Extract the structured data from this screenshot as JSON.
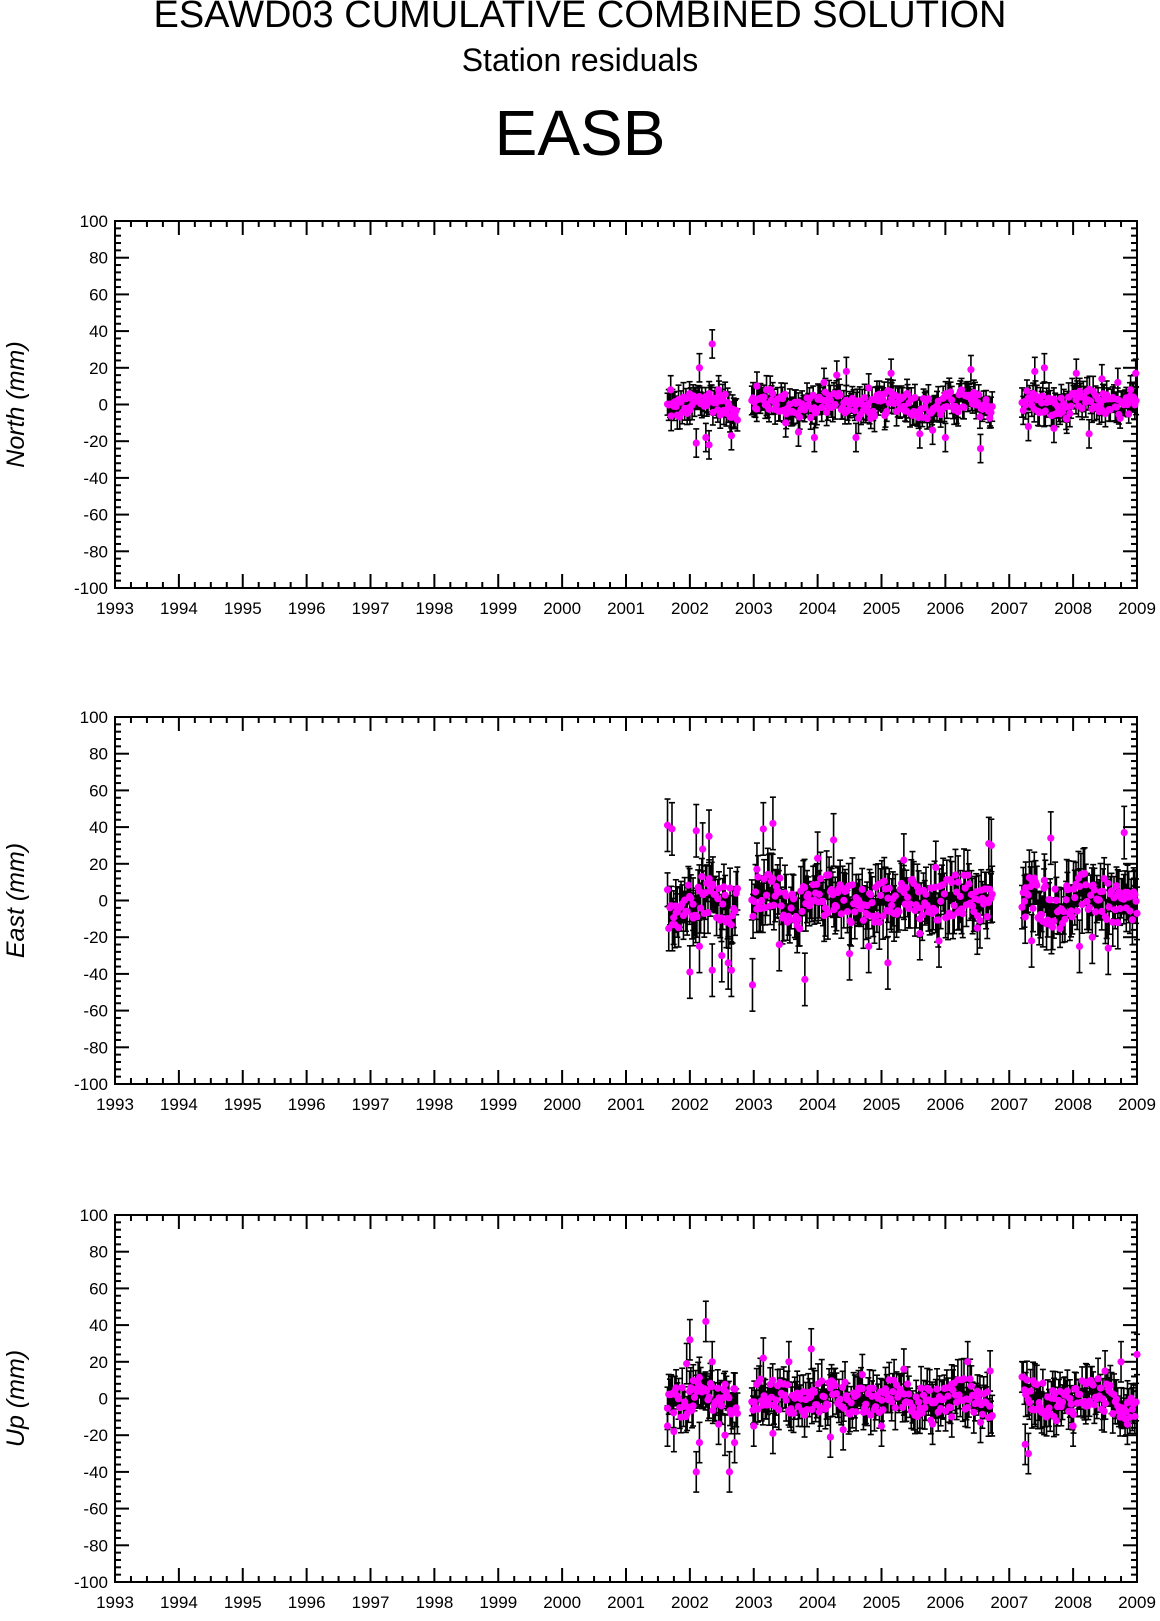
{
  "title": "ESAWD03 CUMULATIVE COMBINED SOLUTION",
  "subtitle": "Station residuals",
  "station": "EASB",
  "colors": {
    "marker": "#ff00ff",
    "errorbar": "#000000",
    "axes": "#000000"
  },
  "chart_data": [
    {
      "type": "scatter",
      "ylabel": "North (mm)",
      "xlim": [
        1993,
        2009
      ],
      "ylim": [
        -100,
        100
      ],
      "xticks": [
        1993,
        1994,
        1995,
        1996,
        1997,
        1998,
        1999,
        2000,
        2001,
        2002,
        2003,
        2004,
        2005,
        2006,
        2007,
        2008,
        2009
      ],
      "yticks": [
        100,
        80,
        60,
        40,
        20,
        0,
        -20,
        -40,
        -60,
        -80,
        -100
      ],
      "data_segments": [
        [
          2001.65,
          2002.75
        ],
        [
          2002.97,
          2006.75
        ],
        [
          2007.2,
          2009.0
        ]
      ],
      "error_half_mm": 7,
      "points": [
        [
          2001.7,
          8
        ],
        [
          2001.75,
          -1
        ],
        [
          2002.0,
          -3
        ],
        [
          2002.1,
          -21
        ],
        [
          2002.15,
          20
        ],
        [
          2002.25,
          -18
        ],
        [
          2002.3,
          -22
        ],
        [
          2002.35,
          33
        ],
        [
          2002.45,
          8
        ],
        [
          2002.6,
          -2
        ],
        [
          2002.65,
          -17
        ],
        [
          2003.05,
          10
        ],
        [
          2003.2,
          8
        ],
        [
          2003.5,
          -10
        ],
        [
          2003.7,
          -15
        ],
        [
          2003.95,
          -18
        ],
        [
          2004.1,
          12
        ],
        [
          2004.3,
          16
        ],
        [
          2004.45,
          18
        ],
        [
          2004.6,
          -18
        ],
        [
          2004.8,
          9
        ],
        [
          2005.05,
          -6
        ],
        [
          2005.15,
          17
        ],
        [
          2005.4,
          6
        ],
        [
          2005.6,
          -16
        ],
        [
          2005.8,
          -14
        ],
        [
          2006.0,
          -18
        ],
        [
          2006.2,
          -4
        ],
        [
          2006.4,
          19
        ],
        [
          2006.55,
          -24
        ],
        [
          2006.7,
          -4
        ],
        [
          2007.3,
          -12
        ],
        [
          2007.4,
          18
        ],
        [
          2007.55,
          20
        ],
        [
          2007.7,
          -13
        ],
        [
          2007.9,
          -8
        ],
        [
          2008.05,
          17
        ],
        [
          2008.25,
          -16
        ],
        [
          2008.45,
          14
        ],
        [
          2008.7,
          12
        ],
        [
          2008.9,
          8
        ],
        [
          2008.98,
          17
        ]
      ]
    },
    {
      "type": "scatter",
      "ylabel": "East (mm)",
      "xlim": [
        1993,
        2009
      ],
      "ylim": [
        -100,
        100
      ],
      "xticks": [
        1993,
        1994,
        1995,
        1996,
        1997,
        1998,
        1999,
        2000,
        2001,
        2002,
        2003,
        2004,
        2005,
        2006,
        2007,
        2008,
        2009
      ],
      "yticks": [
        100,
        80,
        60,
        40,
        20,
        0,
        -20,
        -40,
        -60,
        -80,
        -100
      ],
      "data_segments": [
        [
          2001.65,
          2002.75
        ],
        [
          2002.97,
          2006.75
        ],
        [
          2007.2,
          2009.0
        ]
      ],
      "error_half_mm": 13,
      "points": [
        [
          2001.65,
          41
        ],
        [
          2001.72,
          39
        ],
        [
          2001.78,
          -3
        ],
        [
          2002.0,
          -39
        ],
        [
          2002.05,
          -2
        ],
        [
          2002.1,
          38
        ],
        [
          2002.15,
          -25
        ],
        [
          2002.2,
          28
        ],
        [
          2002.3,
          35
        ],
        [
          2002.35,
          -38
        ],
        [
          2002.5,
          -30
        ],
        [
          2002.6,
          -34
        ],
        [
          2002.65,
          -38
        ],
        [
          2002.98,
          -46
        ],
        [
          2003.05,
          17
        ],
        [
          2003.15,
          39
        ],
        [
          2003.3,
          42
        ],
        [
          2003.4,
          -24
        ],
        [
          2003.8,
          -43
        ],
        [
          2004.0,
          23
        ],
        [
          2004.25,
          33
        ],
        [
          2004.5,
          -29
        ],
        [
          2004.8,
          -25
        ],
        [
          2005.1,
          -34
        ],
        [
          2005.35,
          22
        ],
        [
          2005.6,
          -18
        ],
        [
          2005.85,
          18
        ],
        [
          2005.9,
          -22
        ],
        [
          2006.2,
          10
        ],
        [
          2006.5,
          -15
        ],
        [
          2006.68,
          31
        ],
        [
          2006.72,
          30
        ],
        [
          2007.25,
          -9
        ],
        [
          2007.35,
          -22
        ],
        [
          2007.55,
          11
        ],
        [
          2007.65,
          34
        ],
        [
          2007.9,
          8
        ],
        [
          2008.1,
          -25
        ],
        [
          2008.3,
          -20
        ],
        [
          2008.55,
          -26
        ],
        [
          2008.7,
          -12
        ],
        [
          2008.8,
          37
        ],
        [
          2009.0,
          -7
        ]
      ]
    },
    {
      "type": "scatter",
      "ylabel": "Up (mm)",
      "xlim": [
        1993,
        2009
      ],
      "ylim": [
        -100,
        100
      ],
      "xticks": [
        1993,
        1994,
        1995,
        1996,
        1997,
        1998,
        1999,
        2000,
        2001,
        2002,
        2003,
        2004,
        2005,
        2006,
        2007,
        2008,
        2009
      ],
      "yticks": [
        100,
        80,
        60,
        40,
        20,
        0,
        -20,
        -40,
        -60,
        -80,
        -100
      ],
      "data_segments": [
        [
          2001.65,
          2002.75
        ],
        [
          2002.97,
          2006.75
        ],
        [
          2007.2,
          2009.0
        ]
      ],
      "error_half_mm": 10,
      "points": [
        [
          2001.65,
          -15
        ],
        [
          2001.75,
          -18
        ],
        [
          2001.95,
          19
        ],
        [
          2002.0,
          32
        ],
        [
          2002.05,
          -4
        ],
        [
          2002.1,
          -40
        ],
        [
          2002.15,
          -24
        ],
        [
          2002.25,
          42
        ],
        [
          2002.35,
          20
        ],
        [
          2002.45,
          -14
        ],
        [
          2002.55,
          -20
        ],
        [
          2002.62,
          -40
        ],
        [
          2002.7,
          -24
        ],
        [
          2003.0,
          -15
        ],
        [
          2003.15,
          22
        ],
        [
          2003.3,
          -19
        ],
        [
          2003.55,
          20
        ],
        [
          2003.9,
          27
        ],
        [
          2004.2,
          -21
        ],
        [
          2004.4,
          -17
        ],
        [
          2004.7,
          13
        ],
        [
          2005.0,
          -15
        ],
        [
          2005.35,
          16
        ],
        [
          2005.6,
          -8
        ],
        [
          2005.8,
          -14
        ],
        [
          2006.1,
          -10
        ],
        [
          2006.35,
          20
        ],
        [
          2006.55,
          -13
        ],
        [
          2006.7,
          15
        ],
        [
          2007.25,
          -25
        ],
        [
          2007.3,
          -30
        ],
        [
          2007.4,
          8
        ],
        [
          2007.7,
          0
        ],
        [
          2008.0,
          -15
        ],
        [
          2008.2,
          8
        ],
        [
          2008.5,
          15
        ],
        [
          2008.75,
          20
        ],
        [
          2008.85,
          -14
        ],
        [
          2009.0,
          24
        ]
      ]
    }
  ]
}
